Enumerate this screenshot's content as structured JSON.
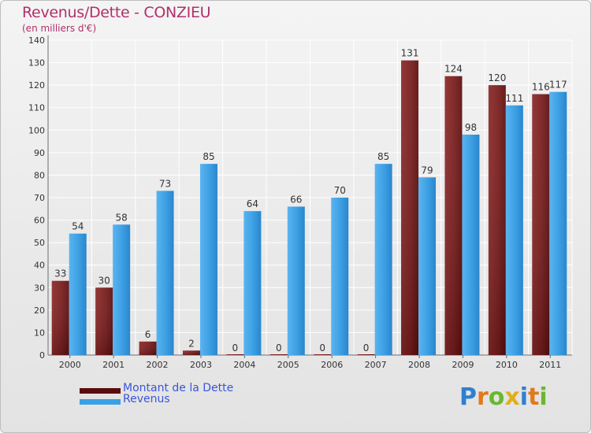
{
  "title": "Revenus/Dette - CONZIEU",
  "subtitle": "(en milliers d'€)",
  "colors": {
    "dette": "#7a1a1a",
    "revenus": "#3aa0e6"
  },
  "legend": [
    {
      "label": "Montant de la Dette",
      "color": "#5a0c0c"
    },
    {
      "label": "Revenus",
      "color": "#3aa0e6"
    }
  ],
  "logo": {
    "text": "Proxiti",
    "letters": [
      "P",
      "r",
      "o",
      "x",
      "i",
      "t",
      "i"
    ],
    "colors": [
      "#2f7fd0",
      "#e07a1a",
      "#6ab82e",
      "#e0b01a",
      "#2f7fd0",
      "#e07a1a",
      "#6ab82e"
    ]
  },
  "chart_data": {
    "type": "bar",
    "categories": [
      "2000",
      "2001",
      "2002",
      "2003",
      "2004",
      "2005",
      "2006",
      "2007",
      "2008",
      "2009",
      "2010",
      "2011"
    ],
    "series": [
      {
        "name": "Montant de la Dette",
        "values": [
          33,
          30,
          6,
          2,
          0,
          0,
          0,
          0,
          131,
          124,
          120,
          116
        ]
      },
      {
        "name": "Revenus",
        "values": [
          54,
          58,
          73,
          85,
          64,
          66,
          70,
          85,
          79,
          98,
          111,
          117
        ]
      }
    ],
    "ylim": [
      0,
      140
    ],
    "yticks": [
      0,
      10,
      20,
      30,
      40,
      50,
      60,
      70,
      80,
      90,
      100,
      110,
      120,
      130,
      140
    ],
    "grid": true,
    "xlabel": "",
    "ylabel": ""
  }
}
